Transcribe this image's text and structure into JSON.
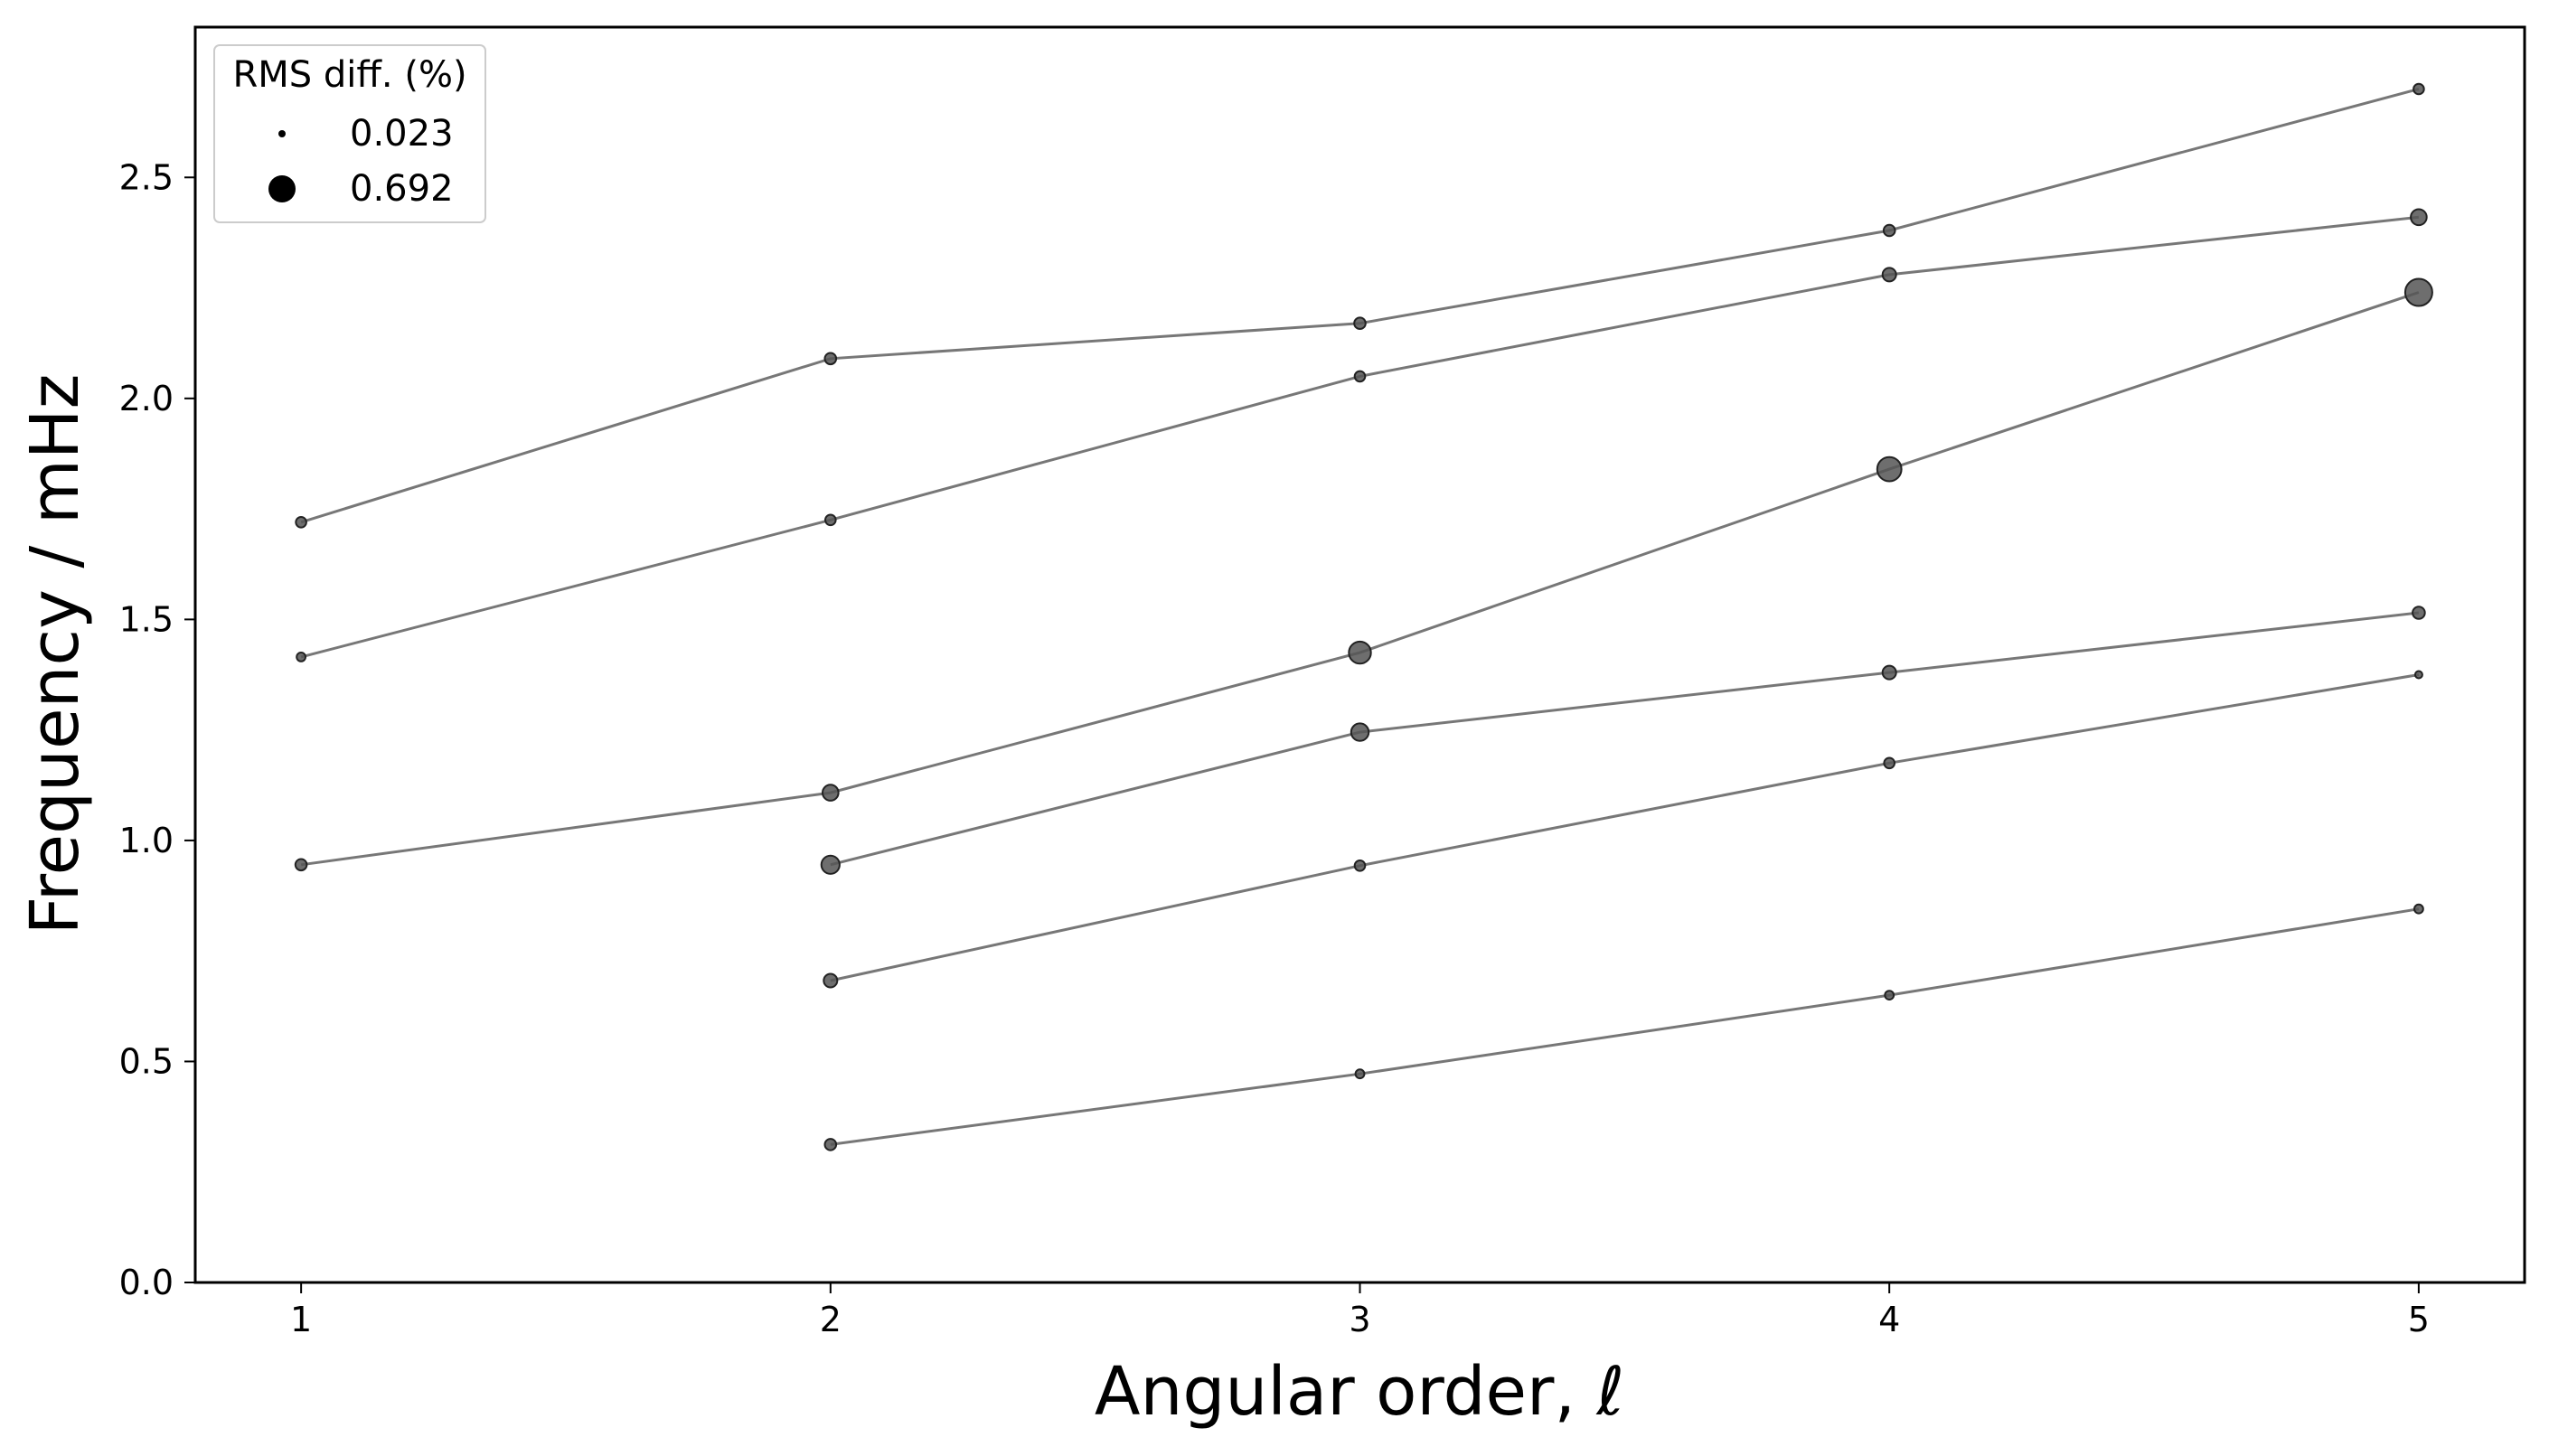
{
  "chart_data": {
    "type": "scatter",
    "xlabel": "Angular order, ℓ",
    "ylabel": "Frequency / mHz",
    "xlim": [
      0.8,
      5.2
    ],
    "ylim": [
      0.0,
      2.84
    ],
    "xticks": [
      1,
      2,
      3,
      4,
      5
    ],
    "yticks": [
      0.0,
      0.5,
      1.0,
      1.5,
      2.0,
      2.5
    ],
    "xtick_labels": [
      "1",
      "2",
      "3",
      "4",
      "5"
    ],
    "ytick_labels": [
      "0.0",
      "0.5",
      "1.0",
      "1.5",
      "2.0",
      "2.5"
    ],
    "grid": false,
    "marker_size_encoding": "RMS difference (%)",
    "legend": {
      "title": "RMS diff. (%)",
      "placement": "top-left",
      "entries": [
        {
          "label": "0.023",
          "value": 0.023
        },
        {
          "label": "0.692",
          "value": 0.692
        }
      ]
    },
    "colors": {
      "line": "#777777",
      "marker": "#555555",
      "marker_edge": "#222222",
      "legend_marker": "#000000"
    },
    "series": [
      {
        "points": [
          {
            "x": 1,
            "y": 1.72,
            "rms": 0.08
          },
          {
            "x": 2,
            "y": 2.09,
            "rms": 0.1
          },
          {
            "x": 3,
            "y": 2.17,
            "rms": 0.1
          },
          {
            "x": 4,
            "y": 2.38,
            "rms": 0.1
          },
          {
            "x": 5,
            "y": 2.7,
            "rms": 0.08
          }
        ]
      },
      {
        "points": [
          {
            "x": 1,
            "y": 1.415,
            "rms": 0.05
          },
          {
            "x": 2,
            "y": 1.725,
            "rms": 0.08
          },
          {
            "x": 3,
            "y": 2.05,
            "rms": 0.08
          },
          {
            "x": 4,
            "y": 2.28,
            "rms": 0.15
          },
          {
            "x": 5,
            "y": 2.41,
            "rms": 0.22
          }
        ]
      },
      {
        "points": [
          {
            "x": 1,
            "y": 0.945,
            "rms": 0.1
          },
          {
            "x": 2,
            "y": 1.108,
            "rms": 0.22
          },
          {
            "x": 3,
            "y": 1.425,
            "rms": 0.45
          },
          {
            "x": 4,
            "y": 1.84,
            "rms": 0.55
          },
          {
            "x": 5,
            "y": 2.24,
            "rms": 0.692
          }
        ]
      },
      {
        "points": [
          {
            "x": 2,
            "y": 0.945,
            "rms": 0.3
          },
          {
            "x": 3,
            "y": 1.245,
            "rms": 0.27
          },
          {
            "x": 4,
            "y": 1.38,
            "rms": 0.15
          },
          {
            "x": 5,
            "y": 1.515,
            "rms": 0.12
          }
        ]
      },
      {
        "points": [
          {
            "x": 2,
            "y": 0.683,
            "rms": 0.15
          },
          {
            "x": 3,
            "y": 0.943,
            "rms": 0.08
          },
          {
            "x": 4,
            "y": 1.175,
            "rms": 0.08
          },
          {
            "x": 5,
            "y": 1.375,
            "rms": 0.023
          }
        ]
      },
      {
        "points": [
          {
            "x": 2,
            "y": 0.312,
            "rms": 0.1
          },
          {
            "x": 3,
            "y": 0.472,
            "rms": 0.05
          },
          {
            "x": 4,
            "y": 0.65,
            "rms": 0.05
          },
          {
            "x": 5,
            "y": 0.845,
            "rms": 0.05
          }
        ]
      }
    ]
  }
}
